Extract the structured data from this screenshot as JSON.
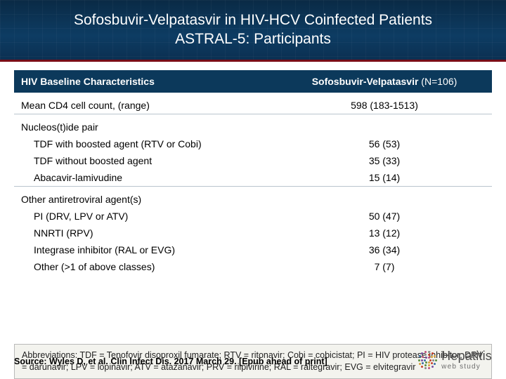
{
  "header": {
    "title_line1": "Sofosbuvir-Velpatasvir in HIV-HCV Coinfected Patients",
    "title_line2": "ASTRAL-5: Participants",
    "bg_color": "#0b3052",
    "accent_color": "#7a0d16"
  },
  "table": {
    "header_bg": "#0c395b",
    "header_fg": "#ffffff",
    "border_color": "#b9c4cd",
    "col_left": "HIV Baseline Characteristics",
    "col_right_strong": "Sofosbuvir-Velpatasvir",
    "col_right_rest": " (N=106)",
    "rows": [
      {
        "label": "Mean CD4 cell count, (range)",
        "value": "598 (183-1513)",
        "indent": false,
        "section_top": true,
        "border_top": false
      },
      {
        "label": "Nucleos(t)ide pair",
        "value": "",
        "indent": false,
        "section_top": true,
        "border_top": true
      },
      {
        "label": "TDF with boosted agent (RTV or Cobi)",
        "value": "56 (53)",
        "indent": true,
        "section_top": false,
        "border_top": false
      },
      {
        "label": "TDF without boosted agent",
        "value": "35 (33)",
        "indent": true,
        "section_top": false,
        "border_top": false
      },
      {
        "label": "Abacavir-lamivudine",
        "value": "15 (14)",
        "indent": true,
        "section_top": false,
        "border_top": false
      },
      {
        "label": "Other antiretroviral agent(s)",
        "value": "",
        "indent": false,
        "section_top": true,
        "border_top": true
      },
      {
        "label": "PI (DRV, LPV or ATV)",
        "value": "50 (47)",
        "indent": true,
        "section_top": false,
        "border_top": false
      },
      {
        "label": "NNRTI (RPV)",
        "value": "13 (12)",
        "indent": true,
        "section_top": false,
        "border_top": false
      },
      {
        "label": "Integrase inhibitor (RAL or EVG)",
        "value": "36 (34)",
        "indent": true,
        "section_top": false,
        "border_top": false
      },
      {
        "label": "Other (>1 of above classes)",
        "value": "7 (7)",
        "indent": true,
        "section_top": false,
        "border_top": false
      }
    ]
  },
  "abbreviations": "Abbreviations: TDF = Tenofovir disoproxil fumarate; RTV = ritonavir; Cobi = cobicistat; PI = HIV protease inhibitor; DRV = darunavir; LPV = lopinavir; ATV = atazanavir; PRV = rilpivirine; RAL = raltegravir; EVG = elvitegravir",
  "abbrev_box": {
    "bg": "#f3f3ee",
    "border": "#b9b9b9"
  },
  "source": "Source: Wyles D, et al. Clin Infect Dis. 2017 March 29. [Epub ahead of print]",
  "logo": {
    "title": "Hepatitis",
    "subtitle": "web study",
    "dot_colors": [
      "#c7412b",
      "#d7a13a",
      "#5a8f3e",
      "#3a6fa5",
      "#7a4fa0",
      "#c04f7b",
      "#888888"
    ]
  }
}
